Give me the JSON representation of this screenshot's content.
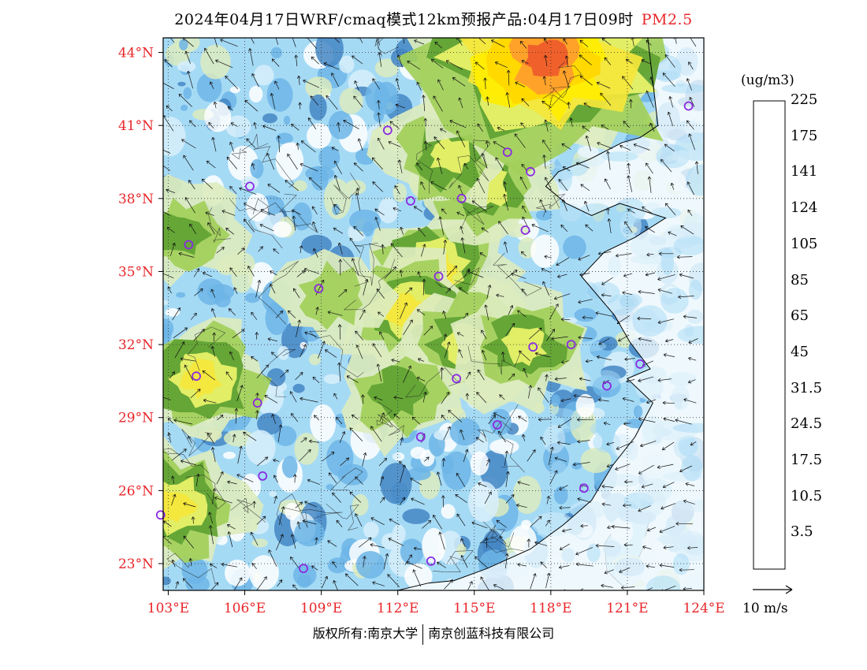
{
  "title": {
    "main": "2024年04月17日WRF/cmaq模式12km预报产品:04月17日09时",
    "pollutant": "PM2.5"
  },
  "map": {
    "lon_range": [
      102.8,
      124.0
    ],
    "lat_range": [
      21.9,
      44.6
    ],
    "lon_ticks": [
      {
        "value": 103,
        "label": "103°E"
      },
      {
        "value": 106,
        "label": "106°E"
      },
      {
        "value": 109,
        "label": "109°E"
      },
      {
        "value": 112,
        "label": "112°E"
      },
      {
        "value": 115,
        "label": "115°E"
      },
      {
        "value": 118,
        "label": "118°E"
      },
      {
        "value": 121,
        "label": "121°E"
      },
      {
        "value": 124,
        "label": "124°E"
      }
    ],
    "lat_ticks": [
      {
        "value": 44,
        "label": "44°N"
      },
      {
        "value": 41,
        "label": "41°N"
      },
      {
        "value": 38,
        "label": "38°N"
      },
      {
        "value": 35,
        "label": "35°N"
      },
      {
        "value": 32,
        "label": "32°N"
      },
      {
        "value": 29,
        "label": "29°N"
      },
      {
        "value": 26,
        "label": "26°N"
      },
      {
        "value": 23,
        "label": "23°N"
      }
    ],
    "tick_label_color": "#e8262a",
    "sea_color": "#ffffff",
    "city_marker_color": "#8a2be2",
    "cities": [
      {
        "lon": 116.3,
        "lat": 39.9
      },
      {
        "lon": 117.2,
        "lat": 39.1
      },
      {
        "lon": 114.5,
        "lat": 38.0
      },
      {
        "lon": 112.5,
        "lat": 37.9
      },
      {
        "lon": 111.6,
        "lat": 40.8
      },
      {
        "lon": 106.2,
        "lat": 38.5
      },
      {
        "lon": 103.8,
        "lat": 36.1
      },
      {
        "lon": 108.9,
        "lat": 34.3
      },
      {
        "lon": 113.6,
        "lat": 34.8
      },
      {
        "lon": 117.0,
        "lat": 36.7
      },
      {
        "lon": 118.8,
        "lat": 32.0
      },
      {
        "lon": 117.3,
        "lat": 31.9
      },
      {
        "lon": 121.5,
        "lat": 31.2
      },
      {
        "lon": 120.2,
        "lat": 30.3
      },
      {
        "lon": 114.3,
        "lat": 30.6
      },
      {
        "lon": 112.9,
        "lat": 28.2
      },
      {
        "lon": 115.9,
        "lat": 28.7
      },
      {
        "lon": 119.3,
        "lat": 26.1
      },
      {
        "lon": 113.3,
        "lat": 23.1
      },
      {
        "lon": 108.3,
        "lat": 22.8
      },
      {
        "lon": 106.7,
        "lat": 26.6
      },
      {
        "lon": 106.5,
        "lat": 29.6
      },
      {
        "lon": 104.1,
        "lat": 30.7
      },
      {
        "lon": 102.7,
        "lat": 25.0
      },
      {
        "lon": 123.4,
        "lat": 41.8
      }
    ],
    "concentration_field": {
      "note_levels": [
        0,
        3.5,
        10.5,
        17.5,
        24.5,
        31.5,
        45,
        65,
        85,
        105,
        124,
        141,
        175,
        225
      ],
      "hotspots": [
        {
          "lon": 113.5,
          "lat": 35.0,
          "value": 50
        },
        {
          "lon": 112.3,
          "lat": 33.5,
          "value": 45
        },
        {
          "lon": 114.8,
          "lat": 32.0,
          "value": 42
        },
        {
          "lon": 115.5,
          "lat": 38.5,
          "value": 40
        },
        {
          "lon": 114.0,
          "lat": 39.8,
          "value": 40
        },
        {
          "lon": 117.0,
          "lat": 31.9,
          "value": 38
        },
        {
          "lon": 112.0,
          "lat": 30.0,
          "value": 36
        },
        {
          "lon": 104.3,
          "lat": 30.6,
          "value": 45
        },
        {
          "lon": 103.2,
          "lat": 25.4,
          "value": 50
        },
        {
          "lon": 116.8,
          "lat": 41.5,
          "value": 30
        },
        {
          "lon": 109.5,
          "lat": 34.0,
          "value": 30
        },
        {
          "lon": 117.8,
          "lat": 43.8,
          "value": 120
        },
        {
          "lon": 103.5,
          "lat": 36.5,
          "value": 32
        }
      ]
    }
  },
  "legend": {
    "unit": "(ug/m3)",
    "colors": [
      "#ffffff",
      "#d7eefa",
      "#a5daf5",
      "#6db5e6",
      "#4486c4",
      "#dcebbe",
      "#bddc7a",
      "#a2cf5a",
      "#87c140",
      "#5fa232",
      "#ecf46a",
      "#f5e63b",
      "#ffee00",
      "#ffd700",
      "#ffad33",
      "#ff9d2e",
      "#ff7c00",
      "#ef5a2a",
      "#ff6666",
      "#f73860",
      "#ff0033",
      "#ff0000",
      "#c71585",
      "#a52a5a",
      "#9933cc",
      "#8a2be2"
    ],
    "labels": [
      {
        "value": "225",
        "row": 22
      },
      {
        "value": "175",
        "row": 20
      },
      {
        "value": "141",
        "row": 18
      },
      {
        "value": "124",
        "row": 16
      },
      {
        "value": "105",
        "row": 14
      },
      {
        "value": "85",
        "row": 12
      },
      {
        "value": "65",
        "row": 10
      },
      {
        "value": "45",
        "row": 8
      },
      {
        "value": "31.5",
        "row": 6
      },
      {
        "value": "24.5",
        "row": 4
      },
      {
        "value": "17.5",
        "row": 2
      },
      {
        "value": "10.5",
        "row": 0
      },
      {
        "value": "3.5",
        "row": -2
      }
    ]
  },
  "wind_reference": {
    "label": "10 m/s"
  },
  "copyright": {
    "left": "版权所有:南京大学",
    "right": "南京创蓝科技有限公司"
  }
}
